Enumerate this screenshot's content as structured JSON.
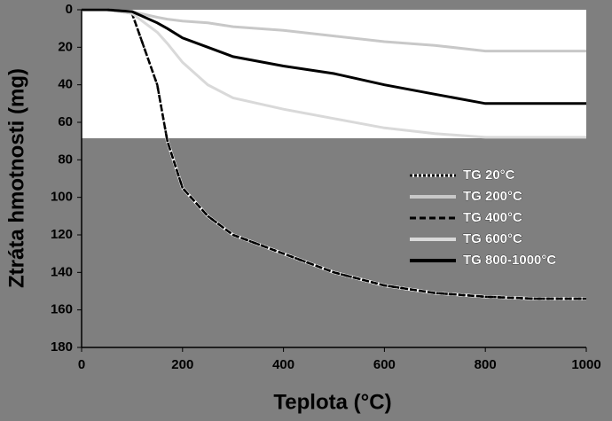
{
  "chart_data": {
    "type": "line",
    "x_label": "Teplota (°C)",
    "y_label": "Ztráta hmotnosti (mg)",
    "x": [
      0,
      50,
      100,
      150,
      170,
      200,
      250,
      300,
      400,
      500,
      600,
      700,
      800,
      900,
      1000
    ],
    "series": [
      {
        "name": "TG 20°C",
        "color": "#000000",
        "style": "dotted",
        "values": [
          0,
          0,
          2,
          40,
          70,
          95,
          110,
          120,
          130,
          140,
          147,
          151,
          153,
          154,
          154
        ]
      },
      {
        "name": "TG 200°C",
        "color": "#c8c8c8",
        "style": "solid",
        "values": [
          0,
          0,
          1,
          4,
          5,
          6,
          7,
          9,
          11,
          14,
          17,
          19,
          22,
          22,
          22
        ]
      },
      {
        "name": "TG 400°C",
        "color": "#000000",
        "style": "dashed",
        "values": [
          0,
          0,
          2,
          40,
          70,
          95,
          110,
          120,
          130,
          140,
          147,
          151,
          153,
          154,
          154
        ]
      },
      {
        "name": "TG 600°C",
        "color": "#d9d9d9",
        "style": "solid",
        "values": [
          0,
          0,
          2,
          12,
          18,
          28,
          40,
          47,
          53,
          58,
          63,
          66,
          68,
          68,
          68
        ]
      },
      {
        "name": "TG 800-1000°C",
        "color": "#000000",
        "style": "solid",
        "values": [
          0,
          0,
          1,
          7,
          10,
          15,
          20,
          25,
          30,
          34,
          40,
          45,
          50,
          50,
          50
        ]
      }
    ],
    "xlim": [
      0,
      1000
    ],
    "xticks": [
      0,
      200,
      400,
      600,
      800,
      1000
    ],
    "ylim": [
      0,
      180
    ],
    "yticks": [
      0,
      20,
      40,
      60,
      80,
      100,
      120,
      140,
      160,
      180
    ],
    "y_inverted": true,
    "legend": "right"
  }
}
